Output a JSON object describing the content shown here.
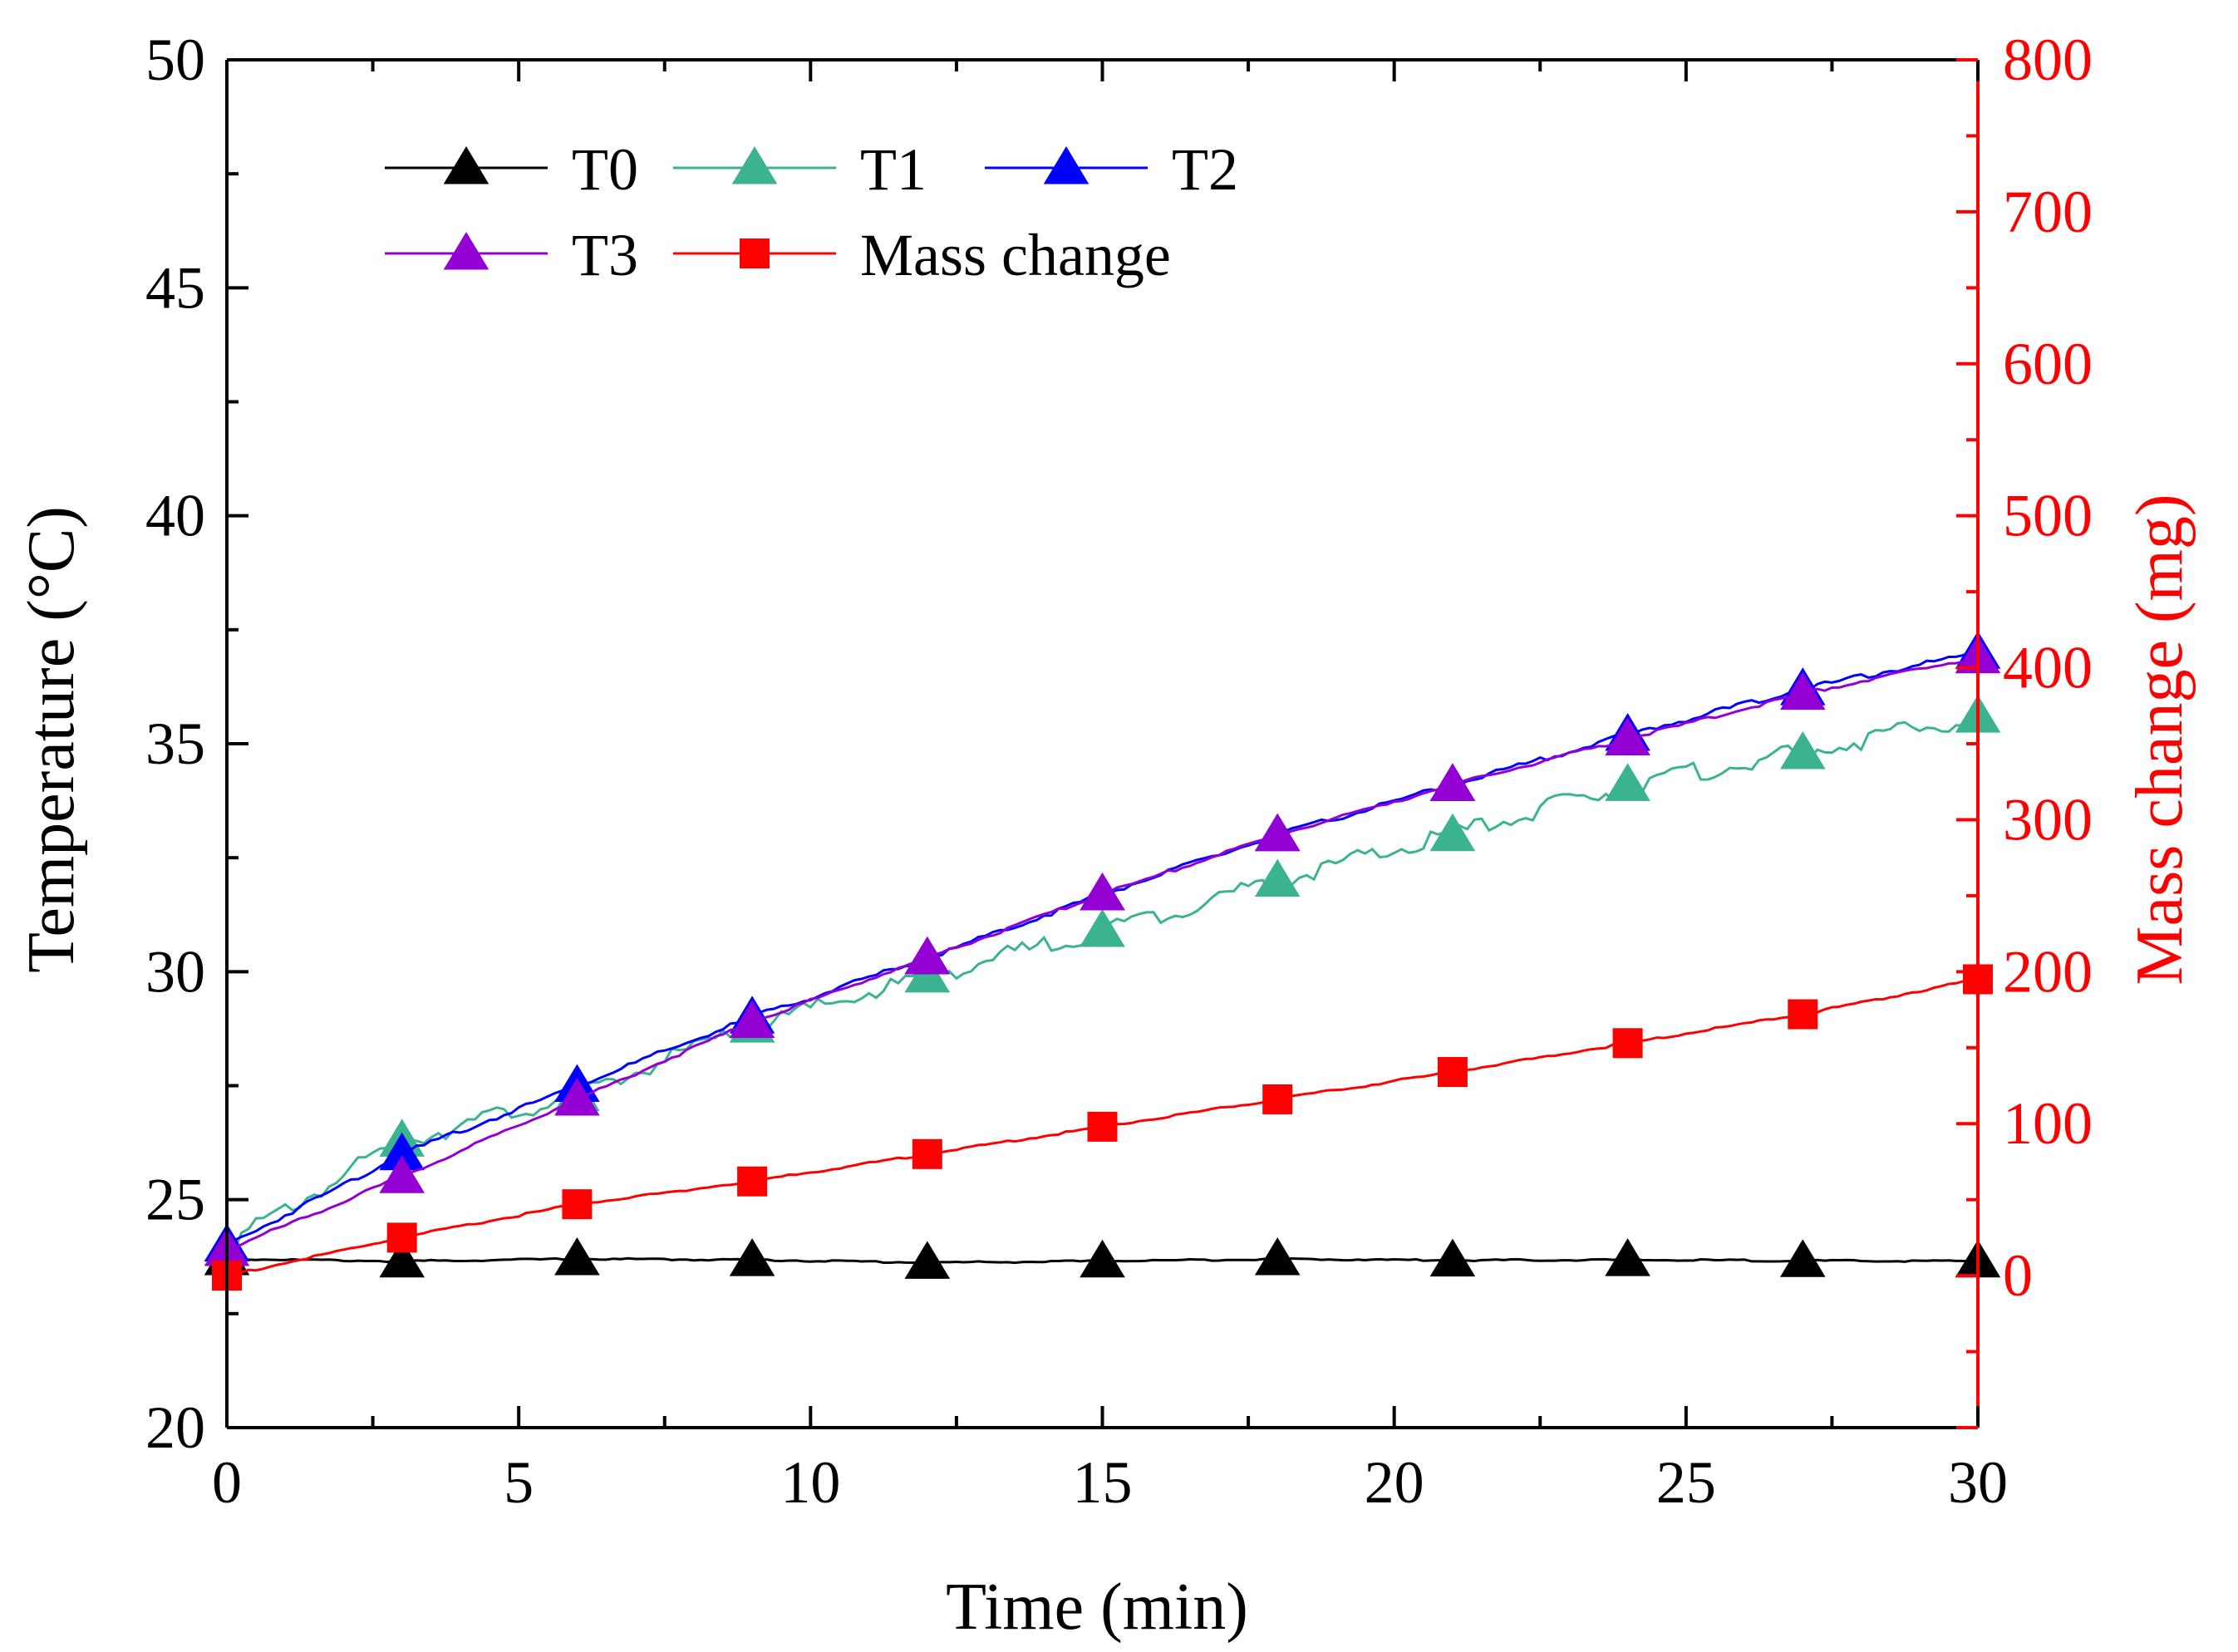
{
  "chart_data": {
    "type": "line",
    "xlabel": "Time (min)",
    "ylabel": "Temperature (°C)",
    "y2label": "Mass change (mg)",
    "xlim": [
      0,
      30
    ],
    "ylim": [
      20,
      50
    ],
    "y2lim": [
      -100,
      800
    ],
    "xticks": [
      "0",
      "5",
      "10",
      "15",
      "20",
      "25",
      "30"
    ],
    "yticks": [
      "20",
      "25",
      "30",
      "35",
      "40",
      "45",
      "50"
    ],
    "y2ticks": [
      "0",
      "100",
      "200",
      "300",
      "400",
      "500",
      "600",
      "700",
      "800"
    ],
    "grid": false,
    "legend": "top-left",
    "series": [
      {
        "name": "T0",
        "axis": "left",
        "color": "#000000",
        "marker": "triangle",
        "x": [
          0,
          3,
          6,
          9,
          12,
          15,
          18,
          21,
          24,
          27,
          30
        ],
        "y": [
          23.7,
          23.65,
          23.7,
          23.68,
          23.62,
          23.65,
          23.7,
          23.67,
          23.68,
          23.66,
          23.65
        ]
      },
      {
        "name": "T1",
        "axis": "left",
        "color": "#3cb390",
        "marker": "triangle",
        "x": [
          0,
          3,
          6,
          9,
          12,
          15,
          18,
          21,
          24,
          27,
          30
        ],
        "y": [
          24.0,
          26.3,
          27.3,
          28.8,
          29.9,
          30.9,
          32.0,
          33.0,
          34.1,
          34.8,
          35.6
        ]
      },
      {
        "name": "T2",
        "axis": "left",
        "color": "#0000ff",
        "marker": "triangle",
        "x": [
          0,
          3,
          6,
          9,
          12,
          15,
          18,
          21,
          24,
          27,
          30
        ],
        "y": [
          24.0,
          26.0,
          27.5,
          29.0,
          30.3,
          31.7,
          33.0,
          34.1,
          35.2,
          36.2,
          37.0
        ]
      },
      {
        "name": "T3",
        "axis": "left",
        "color": "#9400d3",
        "marker": "triangle",
        "x": [
          0,
          3,
          6,
          9,
          12,
          15,
          18,
          21,
          24,
          27,
          30
        ],
        "y": [
          23.9,
          25.5,
          27.2,
          28.9,
          30.3,
          31.7,
          33.0,
          34.1,
          35.1,
          36.1,
          36.9
        ]
      },
      {
        "name": "Mass change",
        "axis": "right",
        "color": "#ff0000",
        "marker": "square",
        "x": [
          0,
          3,
          6,
          9,
          12,
          15,
          18,
          21,
          24,
          27,
          30
        ],
        "y": [
          0,
          25,
          47,
          62,
          80,
          98,
          116,
          134,
          153,
          172,
          195
        ]
      }
    ]
  }
}
